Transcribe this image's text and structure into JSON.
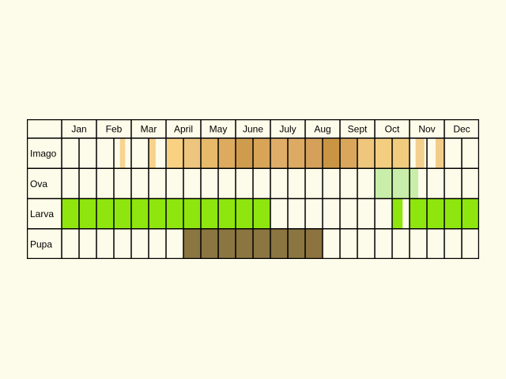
{
  "months": [
    "Jan",
    "Feb",
    "Mar",
    "April",
    "May",
    "June",
    "July",
    "Aug",
    "Sept",
    "Oct",
    "Nov",
    "Dec"
  ],
  "stages": [
    {
      "label": "Imago",
      "segments": [
        {
          "start": 5.35,
          "end": 5.65,
          "color": "#f7d492"
        },
        {
          "start": 7.0,
          "end": 7.4,
          "color": "#f7d28a"
        },
        {
          "start": 8.05,
          "end": 9.0,
          "color": "#f8d182"
        },
        {
          "start": 9.0,
          "end": 10.0,
          "color": "#eec57e"
        },
        {
          "start": 10.0,
          "end": 11.0,
          "color": "#e7b96a"
        },
        {
          "start": 11.0,
          "end": 12.0,
          "color": "#dcab60"
        },
        {
          "start": 12.0,
          "end": 13.0,
          "color": "#cf9c4e"
        },
        {
          "start": 13.0,
          "end": 14.0,
          "color": "#d8a457"
        },
        {
          "start": 14.0,
          "end": 15.0,
          "color": "#e0ad68"
        },
        {
          "start": 15.0,
          "end": 16.0,
          "color": "#dcaa62"
        },
        {
          "start": 16.0,
          "end": 17.0,
          "color": "#d4a05a"
        },
        {
          "start": 17.0,
          "end": 18.0,
          "color": "#c99545"
        },
        {
          "start": 18.0,
          "end": 19.0,
          "color": "#d9a65c"
        },
        {
          "start": 19.0,
          "end": 20.0,
          "color": "#eec77c"
        },
        {
          "start": 20.0,
          "end": 21.0,
          "color": "#f3ce80"
        },
        {
          "start": 21.0,
          "end": 22.0,
          "color": "#f1cc7f"
        },
        {
          "start": 22.35,
          "end": 22.85,
          "color": "#f4d08e"
        },
        {
          "start": 23.5,
          "end": 24.0,
          "color": "#f2cd8a"
        }
      ]
    },
    {
      "label": "Ova",
      "segments": [
        {
          "start": 20.0,
          "end": 22.5,
          "color": "#c8eeaa"
        }
      ]
    },
    {
      "label": "Larva",
      "segments": [
        {
          "start": 2.0,
          "end": 14.0,
          "color": "#8fe60e"
        },
        {
          "start": 21.0,
          "end": 21.6,
          "color": "#8fe60e"
        },
        {
          "start": 22.0,
          "end": 26.0,
          "color": "#8fe60e"
        }
      ]
    },
    {
      "label": "Pupa",
      "segments": [
        {
          "start": 9.0,
          "end": 16.0,
          "color": "#8b7541"
        },
        {
          "start": 16.0,
          "end": 17.0,
          "color": "#8c733f"
        }
      ]
    }
  ]
}
